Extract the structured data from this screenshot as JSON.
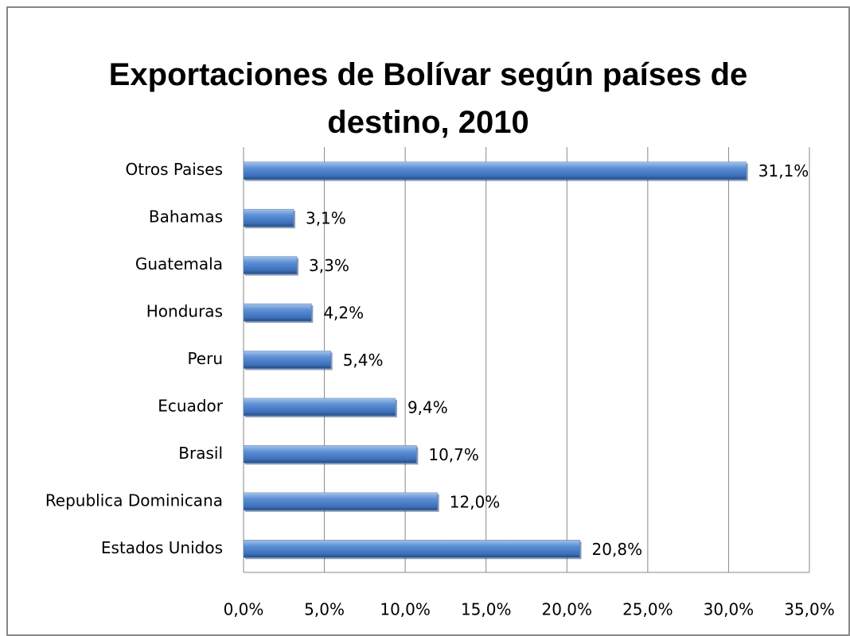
{
  "chart_data": {
    "type": "barh",
    "title": "Exportaciones de Bolívar según países de destino, 2010",
    "categories": [
      "Otros Paises",
      "Bahamas",
      "Guatemala",
      "Honduras",
      "Peru",
      "Ecuador",
      "Brasil",
      "Republica Dominicana",
      "Estados Unidos"
    ],
    "values": [
      31.1,
      3.1,
      3.3,
      4.2,
      5.4,
      9.4,
      10.7,
      12.0,
      20.8
    ],
    "value_labels": [
      "31,1%",
      "3,1%",
      "3,3%",
      "4,2%",
      "5,4%",
      "9,4%",
      "10,7%",
      "12,0%",
      "20,8%"
    ],
    "color": "#4f81bd",
    "xlim": [
      0,
      35
    ],
    "xticks": [
      {
        "value": 0,
        "label": "0,0%"
      },
      {
        "value": 5,
        "label": "5,0%"
      },
      {
        "value": 10,
        "label": "10,0%"
      },
      {
        "value": 15,
        "label": "15,0%"
      },
      {
        "value": 20,
        "label": "20,0%"
      },
      {
        "value": 25,
        "label": "25,0%"
      },
      {
        "value": 30,
        "label": "30,0%"
      },
      {
        "value": 35,
        "label": "35,0%"
      }
    ],
    "grid": true
  }
}
